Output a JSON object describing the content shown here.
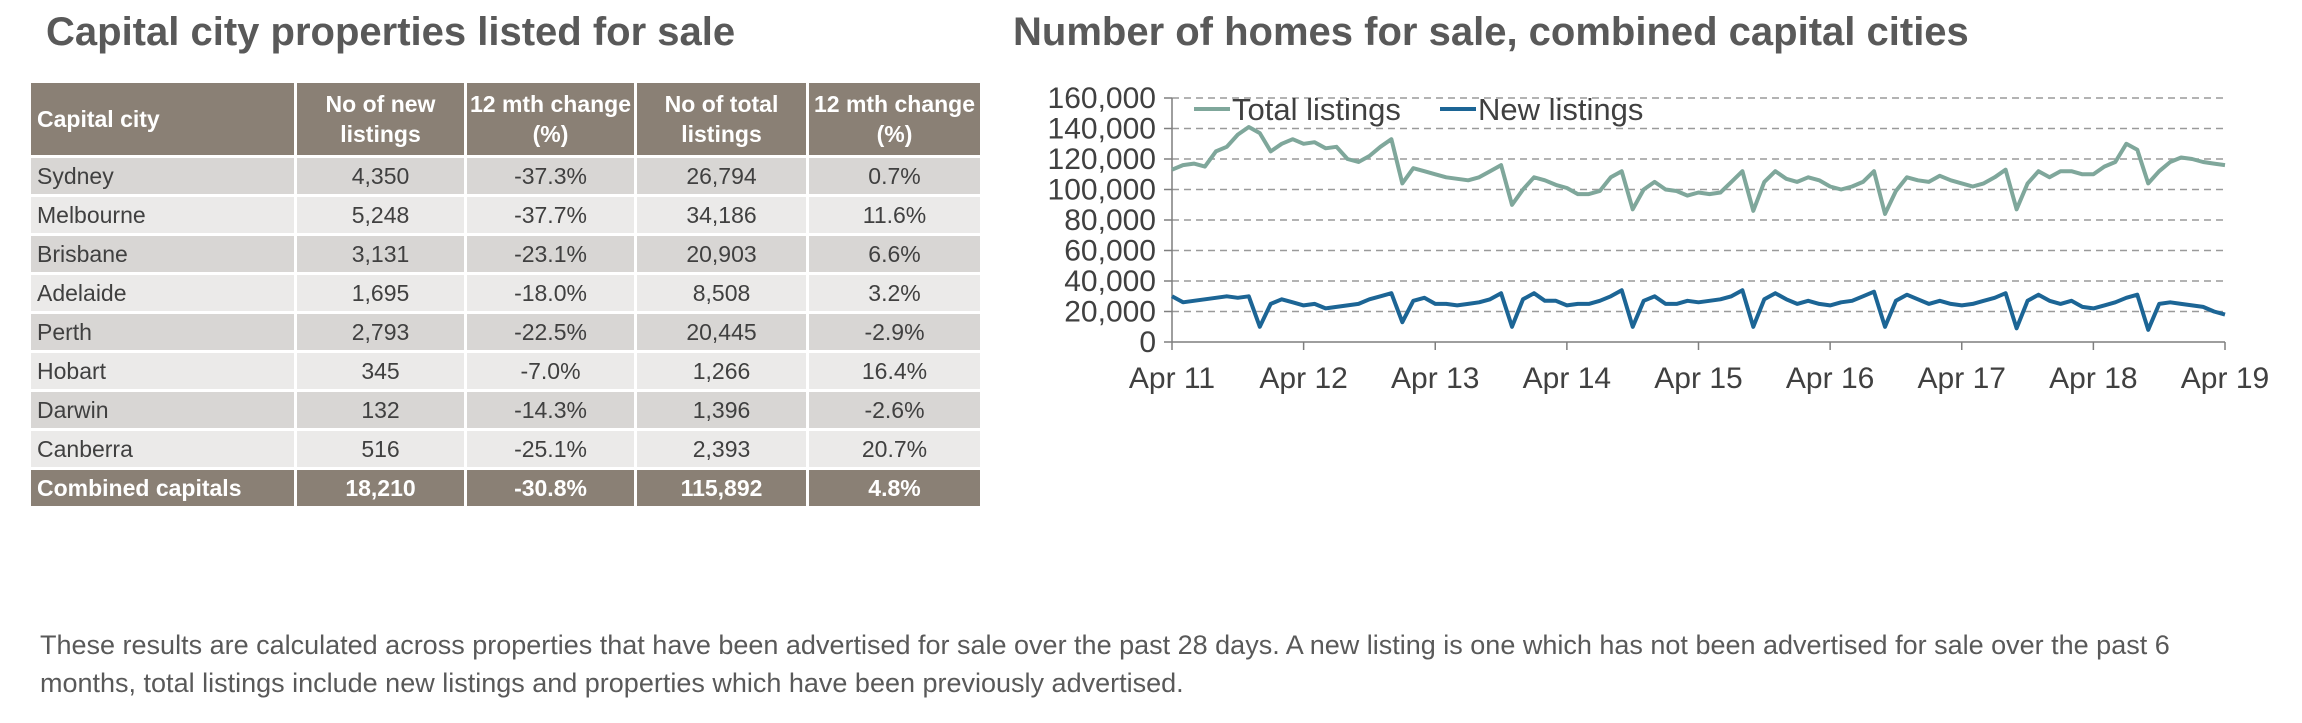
{
  "table_title": "Capital city properties listed for sale",
  "table": {
    "headers": [
      "Capital city",
      "No of new listings",
      "12 mth change (%)",
      "No of total listings",
      "12 mth change (%)"
    ],
    "rows": [
      [
        "Sydney",
        "4,350",
        "-37.3%",
        "26,794",
        "0.7%"
      ],
      [
        "Melbourne",
        "5,248",
        "-37.7%",
        "34,186",
        "11.6%"
      ],
      [
        "Brisbane",
        "3,131",
        "-23.1%",
        "20,903",
        "6.6%"
      ],
      [
        "Adelaide",
        "1,695",
        "-18.0%",
        "8,508",
        "3.2%"
      ],
      [
        "Perth",
        "2,793",
        "-22.5%",
        "20,445",
        "-2.9%"
      ],
      [
        "Hobart",
        "345",
        "-7.0%",
        "1,266",
        "16.4%"
      ],
      [
        "Darwin",
        "132",
        "-14.3%",
        "1,396",
        "-2.6%"
      ],
      [
        "Canberra",
        "516",
        "-25.1%",
        "2,393",
        "20.7%"
      ]
    ],
    "total": [
      "Combined capitals",
      "18,210",
      "-30.8%",
      "115,892",
      "4.8%"
    ]
  },
  "chart_data": {
    "type": "line",
    "title": "Number of homes for sale, combined capital cities",
    "xlabel": "",
    "ylabel": "",
    "ylim": [
      0,
      160000
    ],
    "yticks": [
      0,
      20000,
      40000,
      60000,
      80000,
      100000,
      120000,
      140000,
      160000
    ],
    "ytick_labels": [
      "0",
      "20,000",
      "40,000",
      "60,000",
      "80,000",
      "100,000",
      "120,000",
      "140,000",
      "160,000"
    ],
    "xlim": [
      "2011-04",
      "2019-04"
    ],
    "xtick_labels": [
      "Apr 11",
      "Apr 12",
      "Apr 13",
      "Apr 14",
      "Apr 15",
      "Apr 16",
      "Apr 17",
      "Apr 18",
      "Apr 19"
    ],
    "grid": "horizontal dashed",
    "legend": "top-left",
    "series": [
      {
        "name": "Total listings",
        "color": "#7fa79b",
        "x": [
          "2011-04",
          "2011-05",
          "2011-06",
          "2011-07",
          "2011-08",
          "2011-09",
          "2011-10",
          "2011-11",
          "2011-12",
          "2012-01",
          "2012-02",
          "2012-03",
          "2012-04",
          "2012-05",
          "2012-06",
          "2012-07",
          "2012-08",
          "2012-09",
          "2012-10",
          "2012-11",
          "2012-12",
          "2013-01",
          "2013-02",
          "2013-03",
          "2013-04",
          "2013-05",
          "2013-06",
          "2013-07",
          "2013-08",
          "2013-09",
          "2013-10",
          "2013-11",
          "2013-12",
          "2014-01",
          "2014-02",
          "2014-03",
          "2014-04",
          "2014-05",
          "2014-06",
          "2014-07",
          "2014-08",
          "2014-09",
          "2014-10",
          "2014-11",
          "2014-12",
          "2015-01",
          "2015-02",
          "2015-03",
          "2015-04",
          "2015-05",
          "2015-06",
          "2015-07",
          "2015-08",
          "2015-09",
          "2015-10",
          "2015-11",
          "2015-12",
          "2016-01",
          "2016-02",
          "2016-03",
          "2016-04",
          "2016-05",
          "2016-06",
          "2016-07",
          "2016-08",
          "2016-09",
          "2016-10",
          "2016-11",
          "2016-12",
          "2017-01",
          "2017-02",
          "2017-03",
          "2017-04",
          "2017-05",
          "2017-06",
          "2017-07",
          "2017-08",
          "2017-09",
          "2017-10",
          "2017-11",
          "2017-12",
          "2018-01",
          "2018-02",
          "2018-03",
          "2018-04",
          "2018-05",
          "2018-06",
          "2018-07",
          "2018-08",
          "2018-09",
          "2018-10",
          "2018-11",
          "2018-12",
          "2019-01",
          "2019-02",
          "2019-03",
          "2019-04"
        ],
        "values": [
          113000,
          116000,
          117000,
          115000,
          125000,
          128000,
          136000,
          141000,
          137000,
          125000,
          130000,
          133000,
          130000,
          131000,
          127000,
          128000,
          120000,
          118000,
          122000,
          128000,
          133000,
          104000,
          114000,
          112000,
          110000,
          108000,
          107000,
          106000,
          108000,
          112000,
          116000,
          90000,
          100000,
          108000,
          106000,
          103000,
          101000,
          97000,
          97000,
          99000,
          108000,
          112000,
          87000,
          100000,
          105000,
          100000,
          99000,
          96000,
          98000,
          97000,
          98000,
          105000,
          112000,
          86000,
          105000,
          112000,
          107000,
          105000,
          108000,
          106000,
          102000,
          100000,
          102000,
          105000,
          112000,
          84000,
          99000,
          108000,
          106000,
          105000,
          109000,
          106000,
          104000,
          102000,
          104000,
          108000,
          113000,
          87000,
          104000,
          112000,
          108000,
          112000,
          112000,
          110000,
          110000,
          115000,
          118000,
          130000,
          126000,
          104000,
          112000,
          118000,
          121000,
          120000,
          118000,
          117000,
          116000
        ]
      },
      {
        "name": "New listings",
        "color": "#1c6595",
        "x": [
          "2011-04",
          "2011-05",
          "2011-06",
          "2011-07",
          "2011-08",
          "2011-09",
          "2011-10",
          "2011-11",
          "2011-12",
          "2012-01",
          "2012-02",
          "2012-03",
          "2012-04",
          "2012-05",
          "2012-06",
          "2012-07",
          "2012-08",
          "2012-09",
          "2012-10",
          "2012-11",
          "2012-12",
          "2013-01",
          "2013-02",
          "2013-03",
          "2013-04",
          "2013-05",
          "2013-06",
          "2013-07",
          "2013-08",
          "2013-09",
          "2013-10",
          "2013-11",
          "2013-12",
          "2014-01",
          "2014-02",
          "2014-03",
          "2014-04",
          "2014-05",
          "2014-06",
          "2014-07",
          "2014-08",
          "2014-09",
          "2014-10",
          "2014-11",
          "2014-12",
          "2015-01",
          "2015-02",
          "2015-03",
          "2015-04",
          "2015-05",
          "2015-06",
          "2015-07",
          "2015-08",
          "2015-09",
          "2015-10",
          "2015-11",
          "2015-12",
          "2016-01",
          "2016-02",
          "2016-03",
          "2016-04",
          "2016-05",
          "2016-06",
          "2016-07",
          "2016-08",
          "2016-09",
          "2016-10",
          "2016-11",
          "2016-12",
          "2017-01",
          "2017-02",
          "2017-03",
          "2017-04",
          "2017-05",
          "2017-06",
          "2017-07",
          "2017-08",
          "2017-09",
          "2017-10",
          "2017-11",
          "2017-12",
          "2018-01",
          "2018-02",
          "2018-03",
          "2018-04",
          "2018-05",
          "2018-06",
          "2018-07",
          "2018-08",
          "2018-09",
          "2018-10",
          "2018-11",
          "2018-12",
          "2019-01",
          "2019-02",
          "2019-03",
          "2019-04"
        ],
        "values": [
          30000,
          26000,
          27000,
          28000,
          29000,
          30000,
          29000,
          30000,
          10000,
          25000,
          28000,
          26000,
          24000,
          25000,
          22000,
          23000,
          24000,
          25000,
          28000,
          30000,
          32000,
          13000,
          27000,
          29000,
          25000,
          25000,
          24000,
          25000,
          26000,
          28000,
          32000,
          10000,
          28000,
          32000,
          27000,
          27000,
          24000,
          25000,
          25000,
          27000,
          30000,
          34000,
          10000,
          27000,
          30000,
          25000,
          25000,
          27000,
          26000,
          27000,
          28000,
          30000,
          34000,
          10000,
          28000,
          32000,
          28000,
          25000,
          27000,
          25000,
          24000,
          26000,
          27000,
          30000,
          33000,
          10000,
          27000,
          31000,
          28000,
          25000,
          27000,
          25000,
          24000,
          25000,
          27000,
          29000,
          32000,
          9000,
          27000,
          31000,
          27000,
          25000,
          27000,
          23000,
          22000,
          24000,
          26000,
          29000,
          31000,
          8000,
          25000,
          26000,
          25000,
          24000,
          23000,
          20000,
          18000
        ]
      }
    ]
  },
  "footnote": "These results are calculated across properties that have been advertised for sale over the past 28 days.  A new listing is one which has not been advertised for sale over the past 6 months, total listings include new listings and properties which have been previously advertised."
}
